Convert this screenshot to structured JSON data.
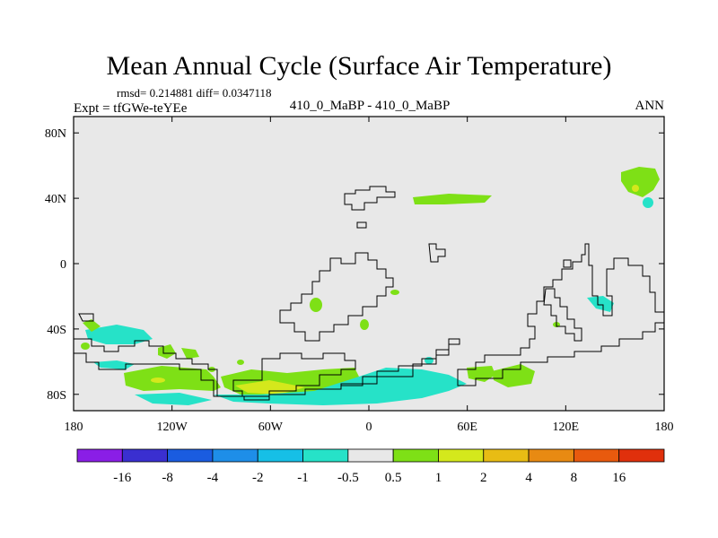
{
  "chart_data": {
    "type": "heatmap",
    "title": "Mean Annual Cycle (Surface Air Temperature)",
    "stats": "rmsd= 0.214881 diff= 0.0347118",
    "experiment": "Expt = tfGWe-teYEe",
    "comparison": "410_0_MaBP - 410_0_MaBP",
    "season": "ANN",
    "x_ticks": [
      "180",
      "120W",
      "60W",
      "0",
      "60E",
      "120E",
      "180"
    ],
    "y_ticks": [
      "80N",
      "40N",
      "0",
      "40S",
      "80S"
    ],
    "xlim": [
      -180,
      180
    ],
    "ylim": [
      -90,
      90
    ],
    "colorbar": {
      "labels": [
        "-16",
        "-8",
        "-4",
        "-2",
        "-1",
        "-0.5",
        "0.5",
        "1",
        "2",
        "4",
        "8",
        "16"
      ],
      "colors": [
        "#8a1ee6",
        "#3a2fd0",
        "#1a5ce0",
        "#1e8ee8",
        "#16bfe6",
        "#26e2c8",
        "#e8e8e8",
        "#7ee016",
        "#d4e81c",
        "#e8bc14",
        "#e88a12",
        "#e85a0e",
        "#e0300c"
      ]
    },
    "background_color": "#e8e8e8"
  }
}
